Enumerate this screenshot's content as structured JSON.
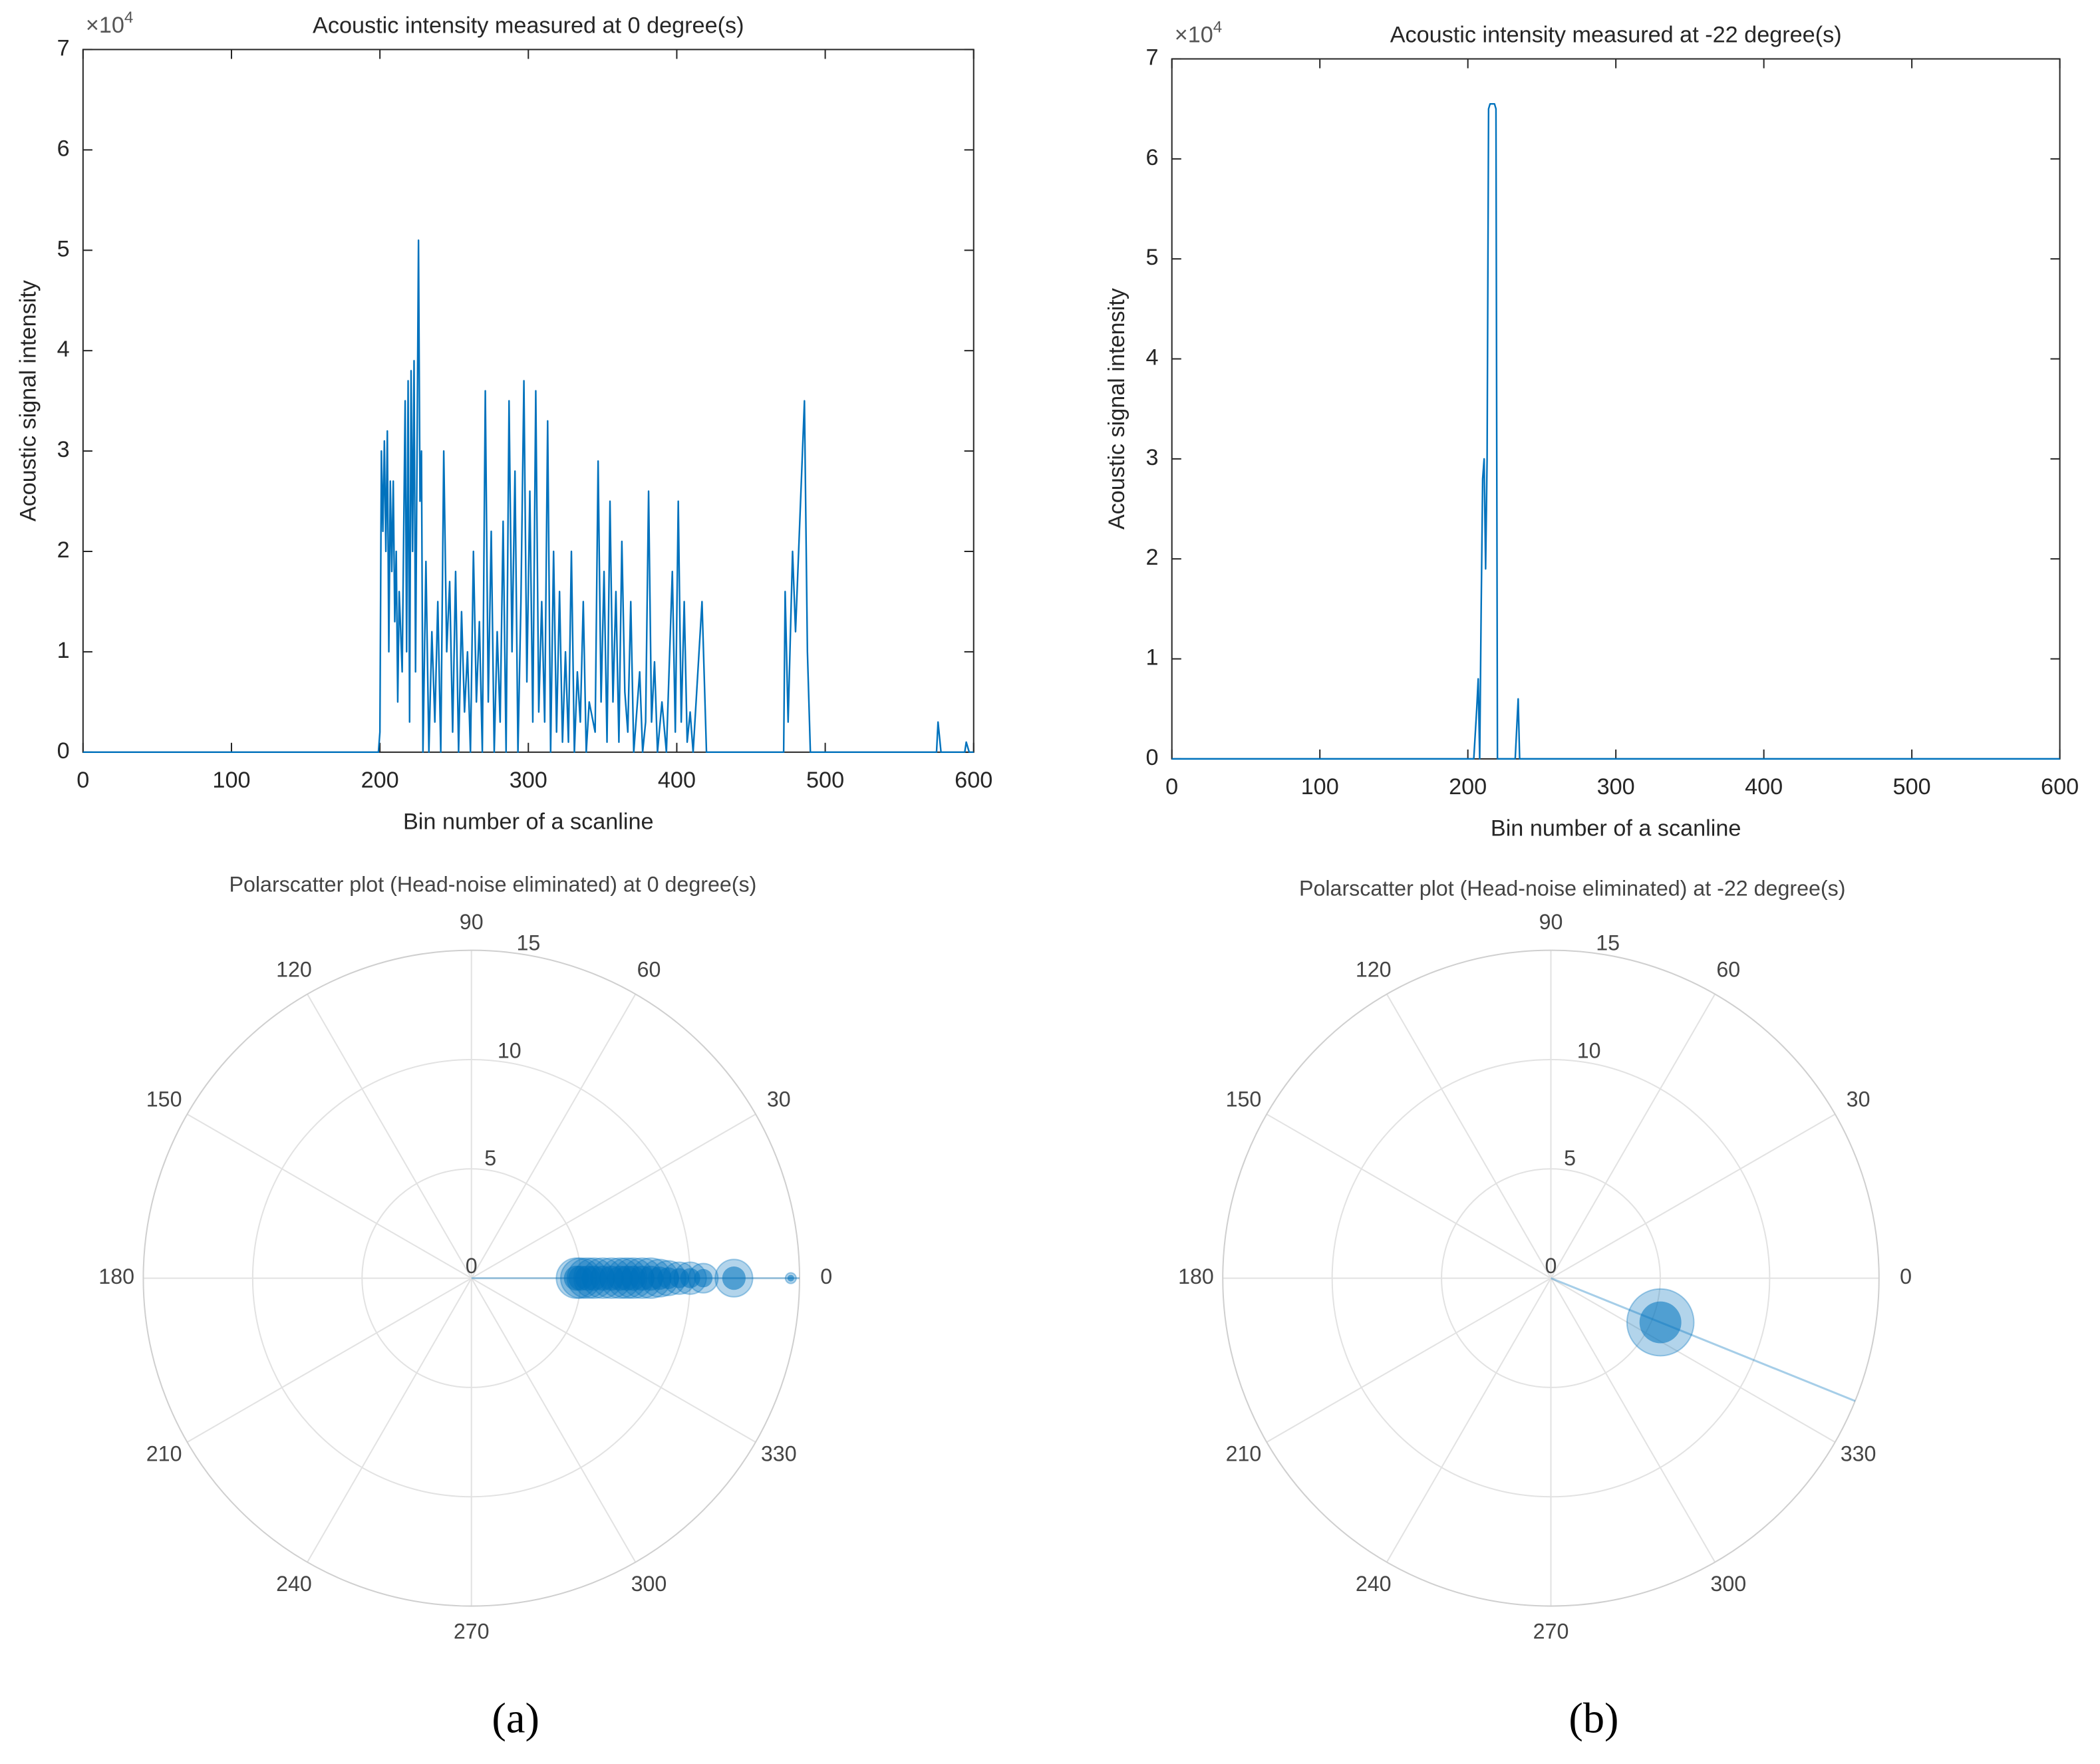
{
  "chart_data": [
    {
      "type": "line",
      "title": "Acoustic intensity measured at 0 degree(s)",
      "xlabel": "Bin number of a scanline",
      "ylabel": "Acoustic signal intensity",
      "y_exponent_label": {
        "base": "×10",
        "exponent": "4"
      },
      "x": [
        0,
        199,
        200,
        201,
        202,
        203,
        204,
        205,
        206,
        207,
        208,
        209,
        210,
        211,
        212,
        213,
        215,
        217,
        218,
        219,
        220,
        221,
        222,
        223,
        224,
        226,
        227,
        228,
        229,
        231,
        233,
        235,
        237,
        239,
        241,
        243,
        245,
        247,
        249,
        251,
        253,
        255,
        257,
        259,
        261,
        263,
        265,
        267,
        269,
        271,
        273,
        275,
        277,
        279,
        281,
        283,
        285,
        287,
        289,
        291,
        293,
        295,
        297,
        299,
        301,
        303,
        305,
        307,
        309,
        311,
        313,
        315,
        317,
        319,
        321,
        323,
        325,
        327,
        329,
        331,
        333,
        335,
        337,
        339,
        341,
        345,
        347,
        349,
        351,
        353,
        355,
        357,
        359,
        361,
        363,
        365,
        367,
        369,
        371,
        375,
        377,
        379,
        381,
        383,
        385,
        387,
        390,
        393,
        397,
        399,
        401,
        403,
        405,
        407,
        409,
        411,
        417,
        420,
        472,
        473,
        475,
        478,
        480,
        486,
        488,
        490,
        575,
        576,
        578,
        594,
        595,
        597,
        600
      ],
      "values": [
        0,
        0,
        0.2,
        3.0,
        2.2,
        3.1,
        2.0,
        3.2,
        1.0,
        2.7,
        1.8,
        2.7,
        1.3,
        2.0,
        0.5,
        1.6,
        0.8,
        3.5,
        1.0,
        3.7,
        0.3,
        3.8,
        2.0,
        3.9,
        0.8,
        5.1,
        2.5,
        3.0,
        0,
        1.9,
        0,
        1.2,
        0.3,
        1.5,
        0,
        3.0,
        1.0,
        1.7,
        0.2,
        1.8,
        0,
        1.4,
        0.4,
        1.0,
        0,
        2.0,
        0.5,
        1.3,
        0,
        3.6,
        0.5,
        2.2,
        0,
        1.2,
        0.3,
        2.3,
        0,
        3.5,
        1.0,
        2.8,
        0,
        1.5,
        3.7,
        0.7,
        2.6,
        0.3,
        3.6,
        0.4,
        1.5,
        0.3,
        3.3,
        0,
        2.0,
        0.2,
        1.6,
        0.1,
        1.0,
        0.1,
        2.0,
        0,
        0.8,
        0.3,
        1.5,
        0,
        0.5,
        0.2,
        2.9,
        0.5,
        1.8,
        0.1,
        2.5,
        0.5,
        1.6,
        0.1,
        2.1,
        0.6,
        0.2,
        1.5,
        0,
        0.8,
        0,
        0.3,
        2.6,
        0.3,
        0.9,
        0,
        0.5,
        0,
        1.8,
        0.2,
        2.5,
        0.3,
        1.5,
        0.1,
        0.4,
        0,
        1.5,
        0,
        0,
        1.6,
        0.3,
        2.0,
        1.2,
        3.5,
        1.0,
        0,
        0,
        0.3,
        0,
        0,
        0.1,
        0,
        0
      ],
      "color": "#0072bd",
      "xlim": [
        0,
        600
      ],
      "ylim": [
        0,
        7
      ],
      "xticks": [
        0,
        100,
        200,
        300,
        400,
        500,
        600
      ],
      "yticks": [
        0,
        1,
        2,
        3,
        4,
        5,
        6,
        7
      ]
    },
    {
      "type": "line",
      "title": "Acoustic intensity measured at -22 degree(s)",
      "xlabel": "Bin number of a scanline",
      "ylabel": "Acoustic signal intensity",
      "y_exponent_label": {
        "base": "×10",
        "exponent": "4"
      },
      "x": [
        0,
        204,
        206,
        207,
        208,
        209,
        210,
        211,
        212,
        213,
        214,
        215,
        218,
        219,
        220,
        232,
        233,
        234,
        235,
        600
      ],
      "values": [
        0,
        0,
        0.5,
        0.8,
        0,
        1.5,
        2.8,
        3.0,
        1.9,
        3.0,
        6.5,
        6.55,
        6.55,
        6.5,
        0,
        0,
        0.3,
        0.6,
        0,
        0
      ],
      "color": "#0072bd",
      "xlim": [
        0,
        600
      ],
      "ylim": [
        0,
        7
      ],
      "xticks": [
        0,
        100,
        200,
        300,
        400,
        500,
        600
      ],
      "yticks": [
        0,
        1,
        2,
        3,
        4,
        5,
        6,
        7
      ]
    },
    {
      "type": "polar_scatter",
      "title": "Polarscatter plot (Head-noise eliminated) at 0 degree(s)",
      "theta": [
        0,
        0,
        0,
        0,
        0,
        0,
        0,
        0,
        0,
        0,
        0,
        0,
        0,
        0,
        0,
        0,
        0,
        0
      ],
      "r": [
        4.8,
        5.0,
        5.3,
        5.6,
        6.0,
        6.4,
        6.8,
        7.1,
        7.4,
        7.8,
        8.2,
        8.6,
        9.0,
        9.5,
        10.0,
        10.6,
        12.0,
        14.6
      ],
      "sizes": [
        30,
        30,
        30,
        30,
        30,
        30,
        30,
        30,
        30,
        30,
        30,
        28,
        26,
        24,
        24,
        22,
        28,
        8
      ],
      "line_theta": 0,
      "color": "#0072bd",
      "rlim": [
        0,
        15
      ],
      "rticks": [
        0,
        5,
        10,
        15
      ],
      "thetaticks": [
        0,
        30,
        60,
        90,
        120,
        150,
        180,
        210,
        240,
        270,
        300,
        330
      ]
    },
    {
      "type": "polar_scatter",
      "title": "Polarscatter plot (Head-noise eliminated) at -22 degree(s)",
      "theta": [
        -22
      ],
      "r": [
        5.4
      ],
      "sizes": [
        50
      ],
      "line_theta": -22,
      "color": "#0072bd",
      "rlim": [
        0,
        15
      ],
      "rticks": [
        0,
        5,
        10,
        15
      ],
      "thetaticks": [
        0,
        30,
        60,
        90,
        120,
        150,
        180,
        210,
        240,
        270,
        300,
        330
      ]
    }
  ],
  "captions": [
    "(a)",
    "(b)"
  ]
}
